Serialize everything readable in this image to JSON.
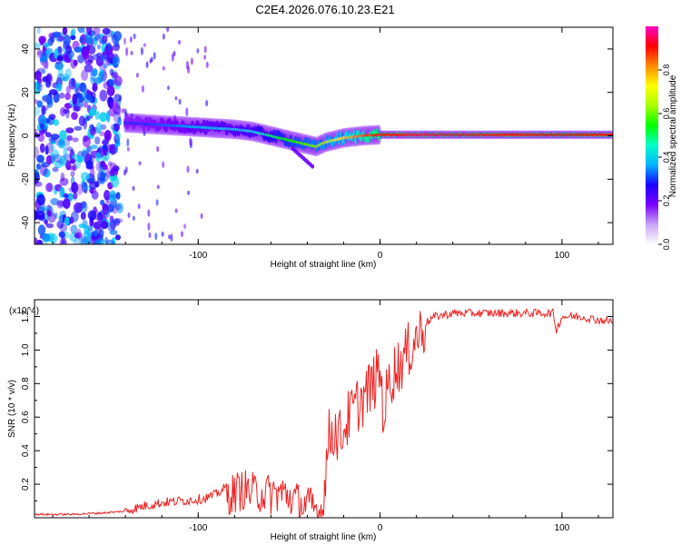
{
  "title": "C2E4.2026.076.10.23.E21",
  "chart_data": [
    {
      "type": "heatmap",
      "name": "spectrogram",
      "xlabel": "Height of straight line (km)",
      "ylabel": "Frequency (Hz)",
      "xlim": [
        -190,
        128
      ],
      "ylim": [
        -50,
        50
      ],
      "x_ticks": [
        -100,
        0,
        100
      ],
      "x_tick_labels": [
        "-100",
        "0",
        "100"
      ],
      "y_ticks": [
        -40,
        -20,
        0,
        20,
        40
      ],
      "y_tick_labels": [
        "-40",
        "-20",
        "0",
        "20",
        "40"
      ],
      "colorbar": {
        "label": "Normalized spectral amplitude",
        "range": [
          0,
          1
        ],
        "ticks": [
          0.0,
          0.2,
          0.4,
          0.6,
          0.8
        ],
        "tick_labels": [
          "0.0",
          "0.2",
          "0.4",
          "0.6",
          "0.8"
        ],
        "colors": [
          "#ffffff",
          "#c9a6f5",
          "#7a00ff",
          "#1b00ff",
          "#00b4ff",
          "#00ffc8",
          "#00ff00",
          "#a8ff00",
          "#ffff00",
          "#ff8c00",
          "#ff0000",
          "#ff00c8"
        ]
      },
      "trace": {
        "x": [
          -140,
          -130,
          -120,
          -110,
          -100,
          -90,
          -80,
          -70,
          -60,
          -50,
          -40,
          -35,
          -30,
          -20,
          -10,
          0,
          10,
          20,
          40,
          60,
          80,
          100,
          128
        ],
        "y": [
          6,
          5.5,
          5,
          4.5,
          4,
          3.5,
          3,
          2,
          0,
          -2,
          -4,
          -5,
          -3,
          -1,
          0,
          0.5,
          0.5,
          0.5,
          0.5,
          0.5,
          0.5,
          0.5,
          0.5
        ],
        "amplitude": [
          0.3,
          0.3,
          0.32,
          0.35,
          0.38,
          0.4,
          0.42,
          0.45,
          0.5,
          0.55,
          0.6,
          0.62,
          0.65,
          0.75,
          0.85,
          0.9,
          0.92,
          0.95,
          0.95,
          0.93,
          0.9,
          0.92,
          0.9
        ]
      },
      "noise_region": {
        "x_min": -190,
        "x_max": -143
      }
    },
    {
      "type": "line",
      "name": "snr",
      "xlabel": "Height of straight line (km)",
      "ylabel": "SNR (10 * v/v)",
      "y_multiplier_label": "(x10^4)",
      "xlim": [
        -190,
        128
      ],
      "ylim": [
        0,
        1.3
      ],
      "x_ticks": [
        -100,
        0,
        100
      ],
      "x_tick_labels": [
        "-100",
        "0",
        "100"
      ],
      "y_ticks": [
        0.2,
        0.4,
        0.6,
        0.8,
        1.0,
        1.2
      ],
      "y_tick_labels": [
        "0.2",
        "0.4",
        "0.6",
        "0.8",
        "1.0",
        "1.2"
      ],
      "color": "#ee2222",
      "series": [
        {
          "name": "SNR",
          "x": [
            -190,
            -180,
            -170,
            -160,
            -150,
            -140,
            -130,
            -120,
            -110,
            -100,
            -95,
            -90,
            -85,
            -80,
            -75,
            -70,
            -65,
            -60,
            -55,
            -50,
            -45,
            -40,
            -35,
            -32,
            -28,
            -25,
            -22,
            -20,
            -18,
            -15,
            -12,
            -10,
            -8,
            -5,
            -2,
            0,
            2,
            4,
            6,
            8,
            10,
            15,
            20,
            25,
            30,
            40,
            60,
            80,
            95,
            97,
            100,
            110,
            120,
            128
          ],
          "y": [
            0.02,
            0.02,
            0.02,
            0.025,
            0.03,
            0.04,
            0.07,
            0.09,
            0.1,
            0.11,
            0.12,
            0.14,
            0.18,
            0.2,
            0.22,
            0.2,
            0.2,
            0.19,
            0.2,
            0.18,
            0.14,
            0.12,
            0.1,
            0.08,
            0.5,
            0.55,
            0.5,
            0.55,
            0.6,
            0.65,
            0.7,
            0.72,
            0.75,
            0.8,
            0.85,
            0.9,
            0.62,
            0.78,
            0.85,
            0.9,
            0.92,
            1.0,
            1.1,
            1.16,
            1.2,
            1.22,
            1.22,
            1.22,
            1.22,
            1.12,
            1.2,
            1.2,
            1.18,
            1.17
          ]
        }
      ]
    }
  ]
}
